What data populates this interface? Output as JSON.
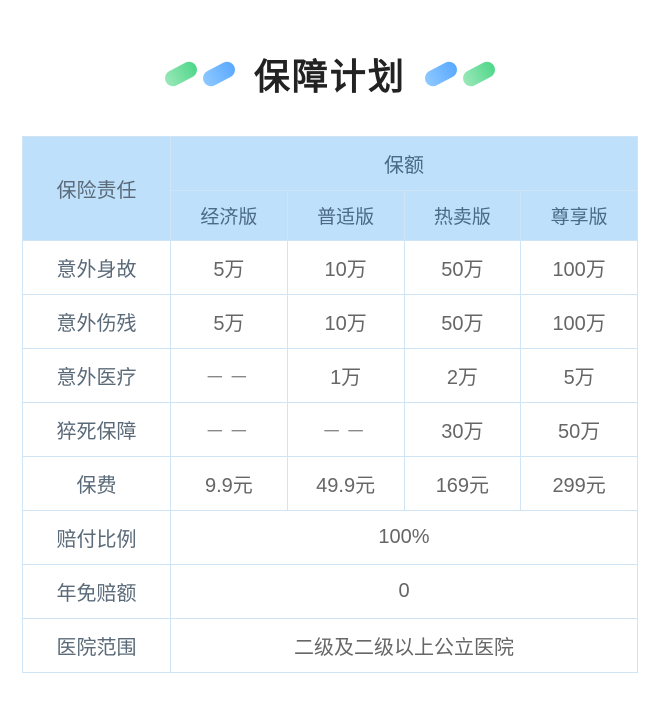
{
  "title": "保障计划",
  "colors": {
    "header_bg": "#bfe0fb",
    "border": "#cfe4f5",
    "title_color": "#222222",
    "text_color": "#666666",
    "pill_green_from": "#9ae8b8",
    "pill_green_to": "#4fd68a",
    "pill_blue_from": "#8ec9ff",
    "pill_blue_to": "#5aa8ff"
  },
  "table": {
    "row_header_label": "保险责任",
    "group_header_label": "保额",
    "plan_columns": [
      "经济版",
      "普适版",
      "热卖版",
      "尊享版"
    ],
    "benefit_rows": [
      {
        "label": "意外身故",
        "values": [
          "5万",
          "10万",
          "50万",
          "100万"
        ]
      },
      {
        "label": "意外伤残",
        "values": [
          "5万",
          "10万",
          "50万",
          "100万"
        ]
      },
      {
        "label": "意外医疗",
        "values": [
          "－－",
          "1万",
          "2万",
          "5万"
        ]
      },
      {
        "label": "猝死保障",
        "values": [
          "－－",
          "－－",
          "30万",
          "50万"
        ]
      },
      {
        "label": "保费",
        "values": [
          "9.9元",
          "49.9元",
          "169元",
          "299元"
        ]
      }
    ],
    "merged_rows": [
      {
        "label": "赔付比例",
        "value": "100%"
      },
      {
        "label": "年免赔额",
        "value": "0"
      },
      {
        "label": "医院范围",
        "value": "二级及二级以上公立医院"
      }
    ]
  }
}
